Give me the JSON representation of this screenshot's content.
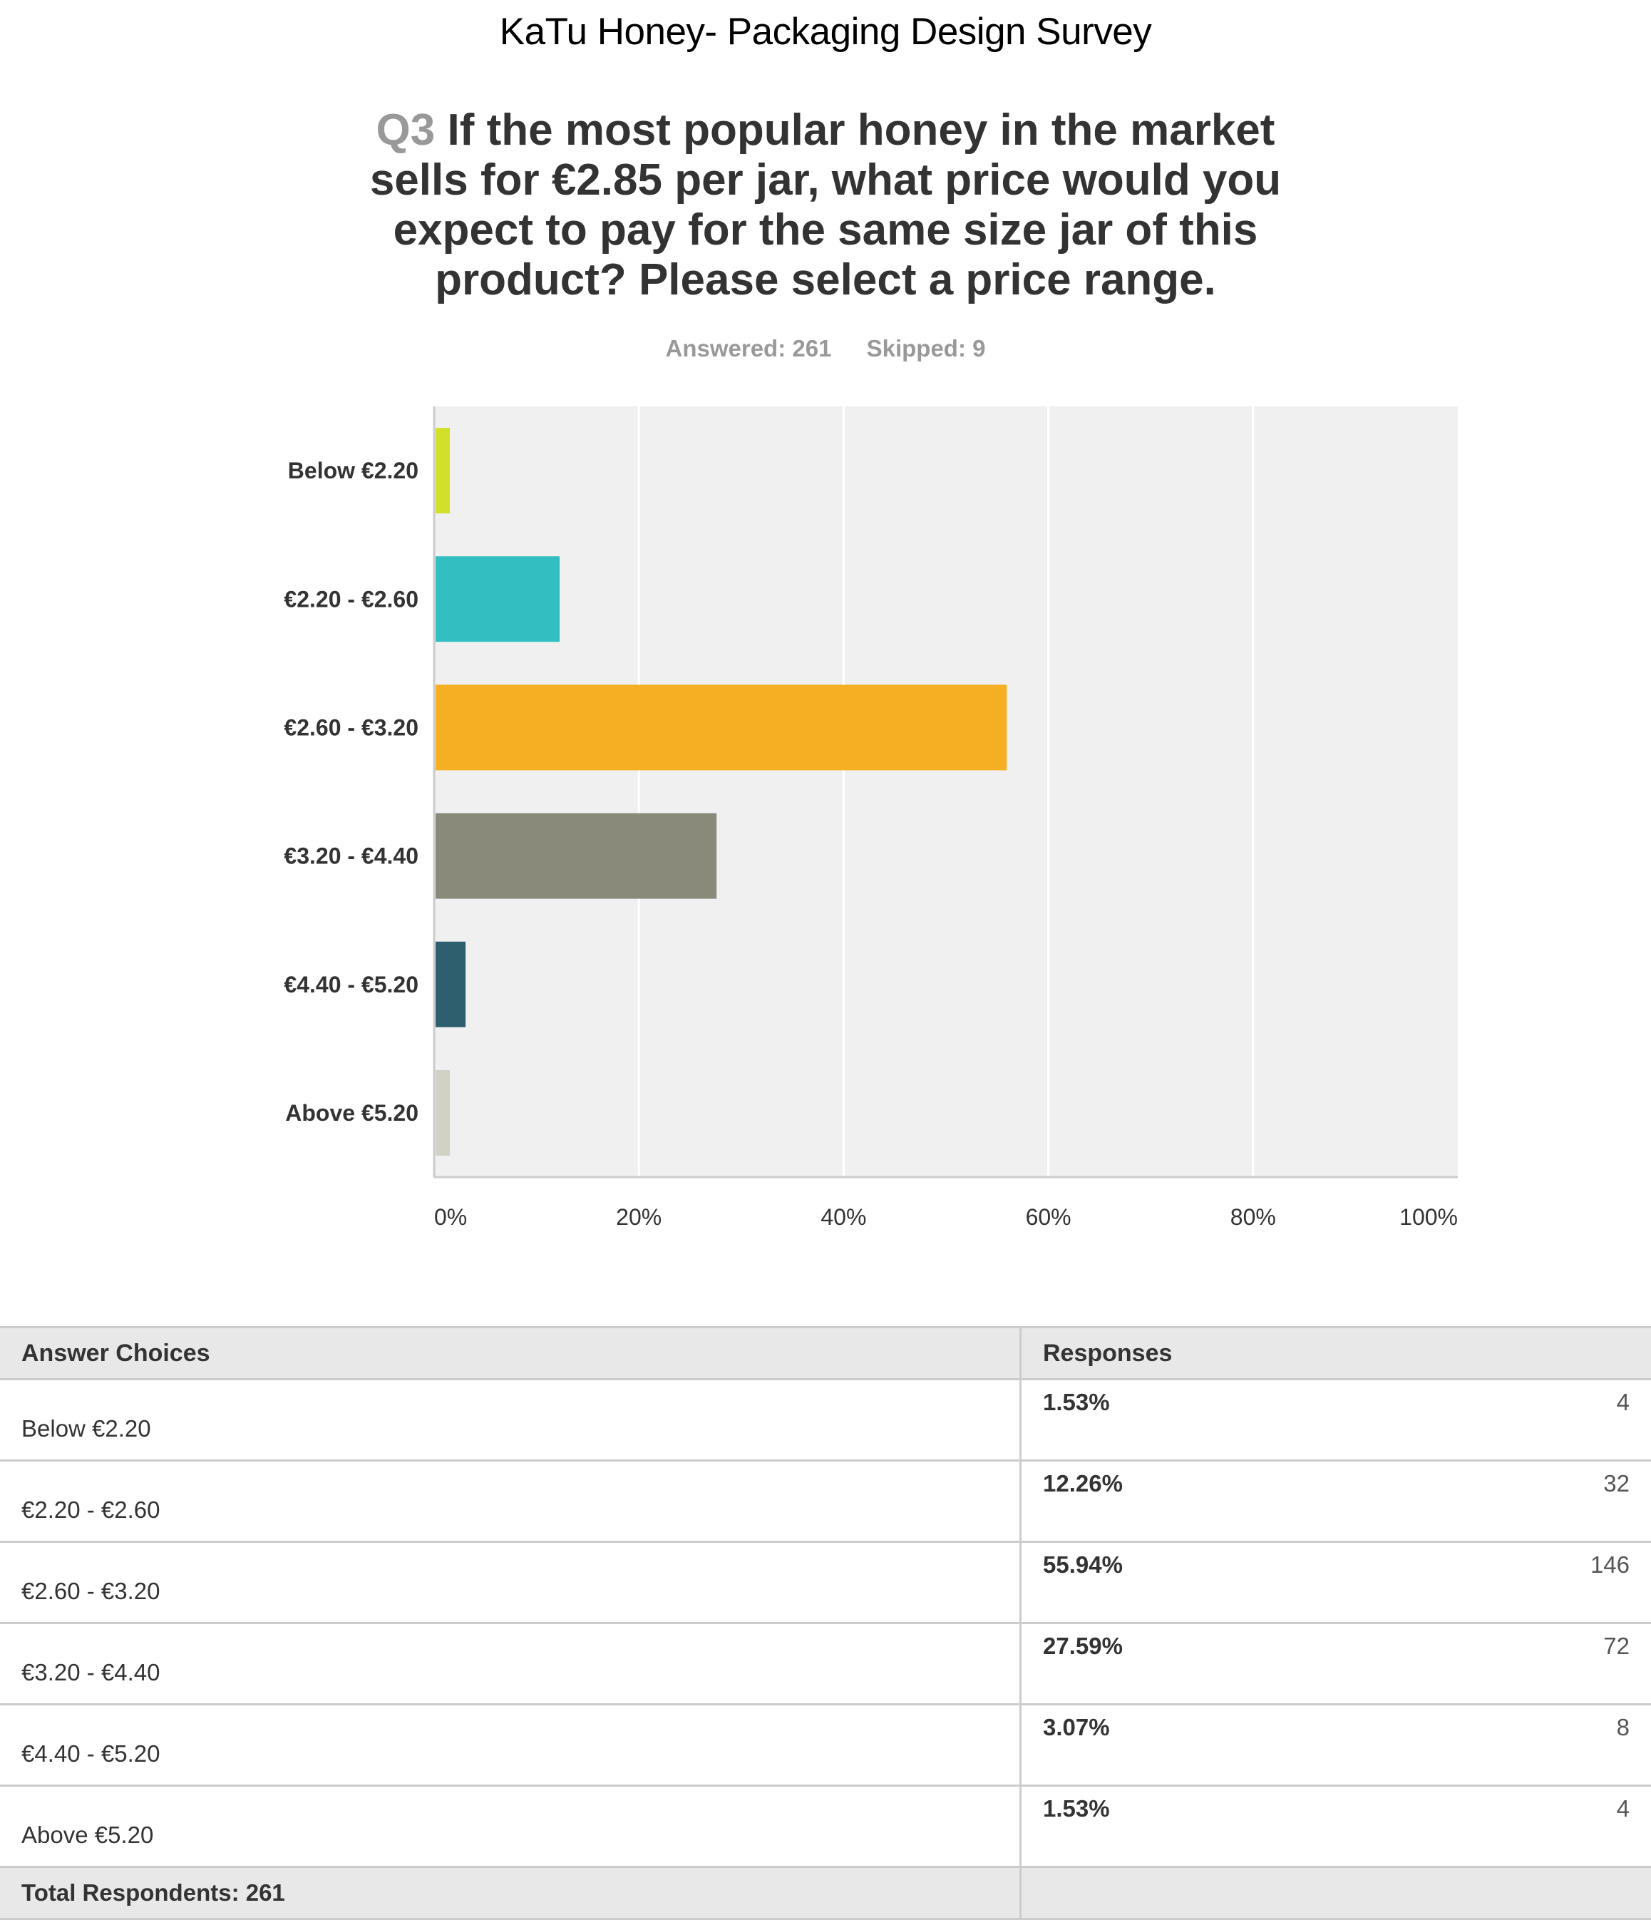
{
  "survey_title": "KaTu Honey- Packaging Design Survey",
  "question": {
    "number": "Q3",
    "text": "If the most popular honey in the market sells for €2.85 per jar, what price would you expect to pay for the same size jar of this product? Please select a price range."
  },
  "stats": {
    "answered": "Answered: 261",
    "skipped": "Skipped: 9"
  },
  "chart_data": {
    "type": "bar",
    "orientation": "horizontal",
    "categories": [
      "Below €2.20",
      "€2.20 - €2.60",
      "€2.60 - €3.20",
      "€3.20 - €4.40",
      "€4.40 - €5.20",
      "Above €5.20"
    ],
    "values": [
      1.53,
      12.26,
      55.94,
      27.59,
      3.07,
      1.53
    ],
    "colors": [
      "#d3e02a",
      "#33bec1",
      "#f6ae23",
      "#898a79",
      "#2e5f6f",
      "#d1d1c6"
    ],
    "xlim": [
      0,
      100
    ],
    "xticks": [
      "0%",
      "20%",
      "40%",
      "60%",
      "80%",
      "100%"
    ],
    "grid": true
  },
  "table": {
    "headers": [
      "Answer Choices",
      "Responses"
    ],
    "rows": [
      {
        "choice": "Below €2.20",
        "percent": "1.53%",
        "count": "4"
      },
      {
        "choice": "€2.20 - €2.60",
        "percent": "12.26%",
        "count": "32"
      },
      {
        "choice": "€2.60 - €3.20",
        "percent": "55.94%",
        "count": "146"
      },
      {
        "choice": "€3.20 - €4.40",
        "percent": "27.59%",
        "count": "72"
      },
      {
        "choice": "€4.40 - €5.20",
        "percent": "3.07%",
        "count": "8"
      },
      {
        "choice": "Above €5.20",
        "percent": "1.53%",
        "count": "4"
      }
    ],
    "total": "Total Respondents: 261"
  }
}
